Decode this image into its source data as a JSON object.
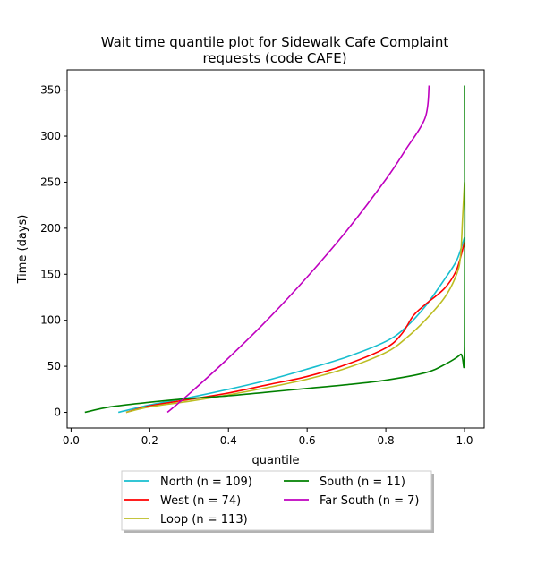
{
  "chart_data": {
    "type": "line",
    "title": "Wait time quantile plot for Sidewalk Cafe Complaint",
    "subtitle": "requests (code CAFE)",
    "xlabel": "quantile",
    "ylabel": "Time (days)",
    "xlim": [
      -0.01,
      1.05
    ],
    "ylim": [
      -17,
      372
    ],
    "xticks": [
      0.0,
      0.2,
      0.4,
      0.6,
      0.8,
      1.0
    ],
    "xtick_labels": [
      "0.0",
      "0.2",
      "0.4",
      "0.6",
      "0.8",
      "1.0"
    ],
    "yticks": [
      0,
      50,
      100,
      150,
      200,
      250,
      300,
      350
    ],
    "ytick_labels": [
      "0",
      "50",
      "100",
      "150",
      "200",
      "250",
      "300",
      "350"
    ],
    "grid": false,
    "legend_placement": "below",
    "series": [
      {
        "name": "North (n = 109)",
        "color": "#17becf",
        "points": [
          [
            0.12,
            0
          ],
          [
            0.2,
            8
          ],
          [
            0.3,
            16
          ],
          [
            0.4,
            25
          ],
          [
            0.5,
            35
          ],
          [
            0.6,
            47
          ],
          [
            0.7,
            60
          ],
          [
            0.8,
            77
          ],
          [
            0.85,
            92
          ],
          [
            0.9,
            115
          ],
          [
            0.95,
            145
          ],
          [
            0.98,
            165
          ],
          [
            1.0,
            190
          ]
        ]
      },
      {
        "name": "West (n = 74)",
        "color": "#ff0000",
        "points": [
          [
            0.14,
            0
          ],
          [
            0.2,
            7
          ],
          [
            0.3,
            14
          ],
          [
            0.4,
            21
          ],
          [
            0.5,
            30
          ],
          [
            0.6,
            39
          ],
          [
            0.7,
            52
          ],
          [
            0.8,
            70
          ],
          [
            0.84,
            85
          ],
          [
            0.87,
            105
          ],
          [
            0.9,
            117
          ],
          [
            0.95,
            135
          ],
          [
            0.98,
            155
          ],
          [
            1.0,
            185
          ]
        ]
      },
      {
        "name": "Loop (n = 113)",
        "color": "#bcbd22",
        "points": [
          [
            0.14,
            0
          ],
          [
            0.2,
            6
          ],
          [
            0.3,
            12
          ],
          [
            0.4,
            19
          ],
          [
            0.5,
            27
          ],
          [
            0.6,
            36
          ],
          [
            0.7,
            48
          ],
          [
            0.8,
            65
          ],
          [
            0.85,
            80
          ],
          [
            0.9,
            100
          ],
          [
            0.95,
            125
          ],
          [
            0.98,
            150
          ],
          [
            0.99,
            170
          ],
          [
            0.995,
            210
          ],
          [
            1.0,
            250
          ]
        ]
      },
      {
        "name": "South (n = 11)",
        "color": "#008000",
        "points": [
          [
            0.035,
            0
          ],
          [
            0.1,
            6
          ],
          [
            0.2,
            11
          ],
          [
            0.3,
            15
          ],
          [
            0.4,
            18
          ],
          [
            0.5,
            22
          ],
          [
            0.6,
            26
          ],
          [
            0.7,
            30
          ],
          [
            0.8,
            35
          ],
          [
            0.9,
            43
          ],
          [
            0.95,
            52
          ],
          [
            0.99,
            63
          ],
          [
            1.0,
            72
          ],
          [
            1.0,
            355
          ]
        ]
      },
      {
        "name": "Far South (n = 7)",
        "color": "#bf00bf",
        "points": [
          [
            0.245,
            0
          ],
          [
            0.3,
            20
          ],
          [
            0.4,
            59
          ],
          [
            0.5,
            101
          ],
          [
            0.6,
            147
          ],
          [
            0.7,
            197
          ],
          [
            0.8,
            253
          ],
          [
            0.85,
            285
          ],
          [
            0.9,
            320
          ],
          [
            0.91,
            355
          ]
        ]
      }
    ]
  }
}
